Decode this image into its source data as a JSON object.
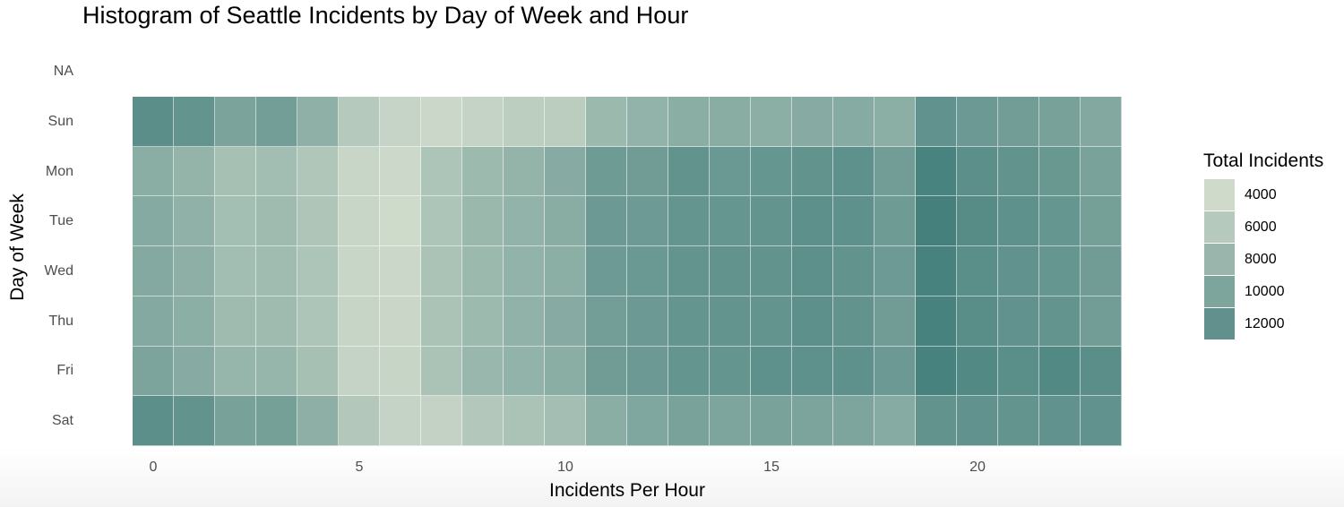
{
  "chart_data": {
    "type": "heatmap",
    "title": "Histogram of Seattle Incidents by Day of Week and Hour",
    "xlabel": "Incidents Per Hour",
    "ylabel": "Day of Week",
    "x": [
      0,
      1,
      2,
      3,
      4,
      5,
      6,
      7,
      8,
      9,
      10,
      11,
      12,
      13,
      14,
      15,
      16,
      17,
      18,
      19,
      20,
      21,
      22,
      23
    ],
    "x_ticks": [
      0,
      5,
      10,
      15,
      20
    ],
    "y_categories": [
      "NA",
      "Sun",
      "Mon",
      "Tue",
      "Wed",
      "Thu",
      "Fri",
      "Sat"
    ],
    "legend": {
      "title": "Total Incidents",
      "breaks": [
        4000,
        6000,
        8000,
        10000,
        12000
      ],
      "colors": [
        "#cfdacb",
        "#b5c9bc",
        "#99b5ac",
        "#7ea59c",
        "#62918d"
      ],
      "position": "right"
    },
    "color_scale": {
      "low": "#d6dfcf",
      "high": "#45807d",
      "min": 3000,
      "max": 13500
    },
    "series": [
      {
        "name": "Sun",
        "values": [
          11900,
          11300,
          9600,
          10200,
          8200,
          5400,
          4200,
          3800,
          4300,
          4900,
          5000,
          7200,
          7900,
          8500,
          8600,
          8400,
          8700,
          8800,
          8400,
          11500,
          10700,
          10300,
          9900,
          9100
        ]
      },
      {
        "name": "Mon",
        "values": [
          8500,
          7800,
          6400,
          6800,
          5800,
          4000,
          3700,
          6000,
          7100,
          7800,
          8700,
          10500,
          10400,
          11400,
          10800,
          11100,
          11400,
          11600,
          10300,
          13200,
          11800,
          11400,
          10900,
          9700
        ]
      },
      {
        "name": "Tue",
        "values": [
          8900,
          8100,
          6700,
          7000,
          5900,
          4000,
          3600,
          6000,
          7300,
          7900,
          8600,
          10700,
          10600,
          11200,
          11100,
          11300,
          11700,
          11600,
          10500,
          13500,
          12300,
          11600,
          11100,
          10000
        ]
      },
      {
        "name": "Wed",
        "values": [
          9000,
          8300,
          6800,
          6900,
          6000,
          4000,
          3800,
          6100,
          7200,
          7900,
          8400,
          10600,
          10800,
          11300,
          11400,
          11400,
          11700,
          11400,
          10600,
          13300,
          12000,
          11500,
          11100,
          10400
        ]
      },
      {
        "name": "Thu",
        "values": [
          9000,
          8400,
          7000,
          7000,
          6000,
          4100,
          3900,
          6100,
          7100,
          8000,
          8700,
          10200,
          10700,
          11200,
          11300,
          11300,
          11700,
          11400,
          10400,
          13300,
          12100,
          11500,
          11300,
          10300
        ]
      },
      {
        "name": "Fri",
        "values": [
          9500,
          8700,
          7600,
          7600,
          6400,
          4300,
          4100,
          6100,
          7400,
          7900,
          8500,
          10400,
          10700,
          11200,
          11200,
          11600,
          11600,
          11600,
          10700,
          13300,
          12500,
          12000,
          12500,
          11900
        ]
      },
      {
        "name": "Sat",
        "values": [
          11800,
          11400,
          9900,
          10000,
          8300,
          5500,
          4300,
          4400,
          5500,
          6100,
          6600,
          8500,
          9200,
          9700,
          9400,
          9700,
          9500,
          9400,
          8800,
          11400,
          11500,
          11300,
          11500,
          11500
        ]
      },
      {
        "name": "NA",
        "values": []
      }
    ],
    "grid": false
  }
}
